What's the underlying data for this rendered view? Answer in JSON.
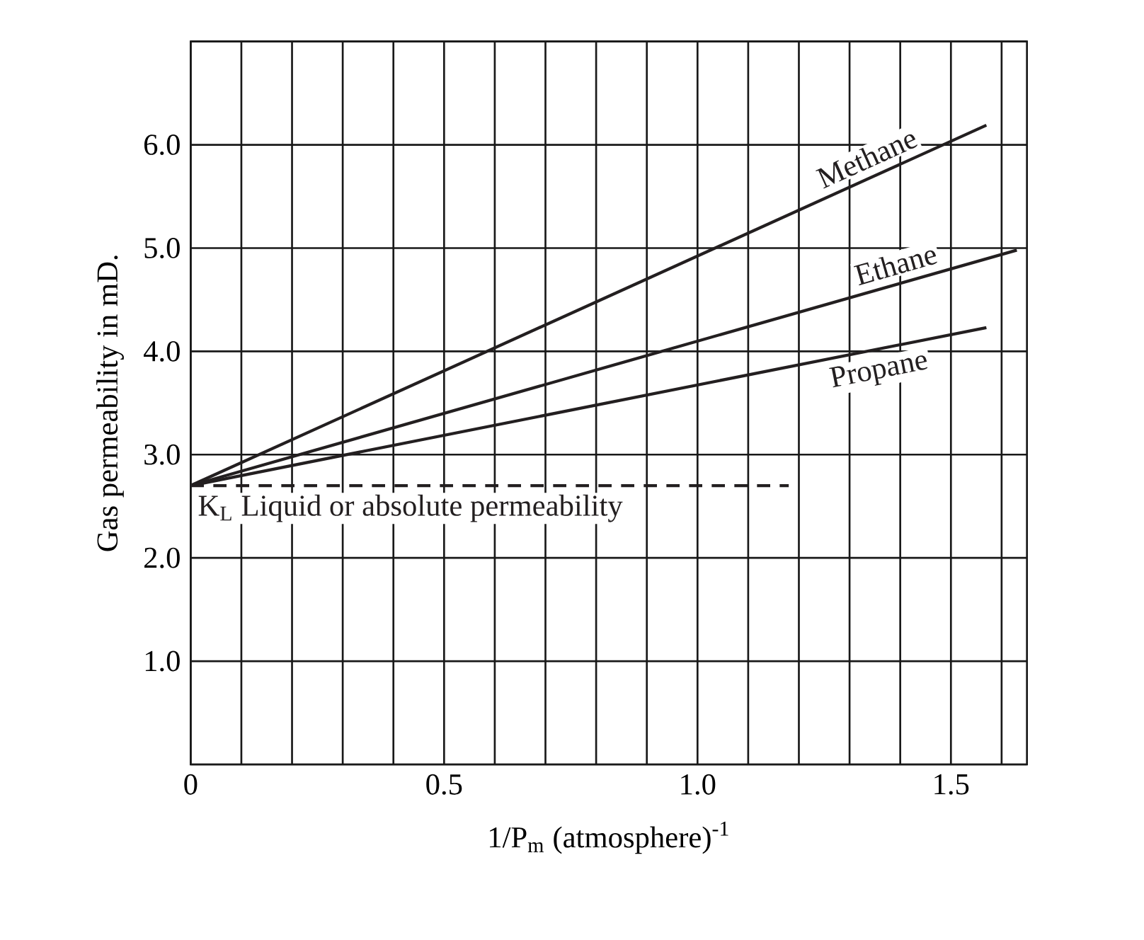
{
  "chart_data": {
    "type": "line",
    "xlabel": "1/P$_{m}$ (atmosphere)$^{-1}$",
    "ylabel": "Gas permeability in mD.",
    "xlim": [
      0,
      1.65
    ],
    "ylim": [
      0,
      7
    ],
    "xticks": [
      {
        "value": 0,
        "label": "0"
      },
      {
        "value": 0.1,
        "label": null
      },
      {
        "value": 0.2,
        "label": null
      },
      {
        "value": 0.3,
        "label": null
      },
      {
        "value": 0.4,
        "label": null
      },
      {
        "value": 0.5,
        "label": "0.5"
      },
      {
        "value": 0.6,
        "label": null
      },
      {
        "value": 0.7,
        "label": null
      },
      {
        "value": 0.8,
        "label": null
      },
      {
        "value": 0.9,
        "label": null
      },
      {
        "value": 1.0,
        "label": "1.0"
      },
      {
        "value": 1.1,
        "label": null
      },
      {
        "value": 1.2,
        "label": null
      },
      {
        "value": 1.3,
        "label": null
      },
      {
        "value": 1.4,
        "label": null
      },
      {
        "value": 1.5,
        "label": "1.5"
      },
      {
        "value": 1.6,
        "label": null
      }
    ],
    "yticks": [
      {
        "value": 0,
        "label": null
      },
      {
        "value": 1,
        "label": "1.0"
      },
      {
        "value": 2,
        "label": "2.0"
      },
      {
        "value": 3,
        "label": "3.0"
      },
      {
        "value": 4,
        "label": "4.0"
      },
      {
        "value": 5,
        "label": "5.0"
      },
      {
        "value": 6,
        "label": "6.0"
      },
      {
        "value": 7,
        "label": null
      }
    ],
    "grid": true,
    "legend": false,
    "marker": "none",
    "series": [
      {
        "name": "Methane",
        "color": "#231f20",
        "x": [
          0,
          1.57
        ],
        "values": [
          2.7,
          6.19
        ],
        "line_style": "solid"
      },
      {
        "name": "Ethane",
        "color": "#231f20",
        "x": [
          0,
          1.63
        ],
        "values": [
          2.7,
          4.98
        ],
        "line_style": "solid"
      },
      {
        "name": "Propane",
        "color": "#231f20",
        "x": [
          0,
          1.57
        ],
        "values": [
          2.7,
          4.23
        ],
        "line_style": "solid"
      },
      {
        "name": "K$_{L}$ Liquid or absolute permeability",
        "color": "#231f20",
        "x": [
          0,
          1.18
        ],
        "values": [
          2.7,
          2.7
        ],
        "line_style": "dashed"
      }
    ]
  }
}
